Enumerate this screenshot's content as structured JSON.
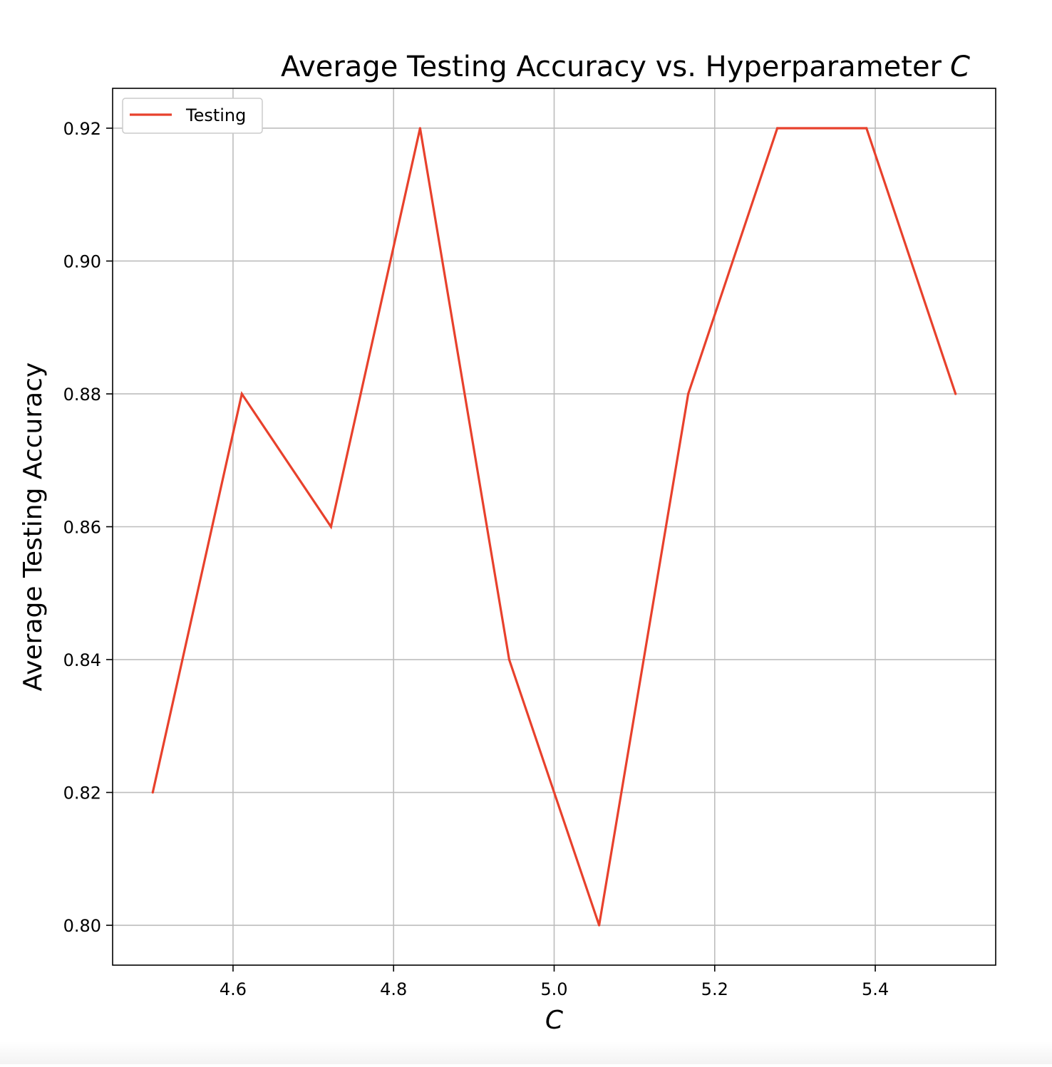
{
  "chart_data": {
    "type": "line",
    "title": "Average Testing Accuracy vs. Hyperparameter",
    "title_symbol": "C",
    "xlabel": "C",
    "ylabel": "Average Testing Accuracy",
    "xlim": [
      4.45,
      5.55
    ],
    "ylim": [
      0.794,
      0.926
    ],
    "xticks": [
      4.6,
      4.8,
      5.0,
      5.2,
      5.4
    ],
    "xtick_labels": [
      "4.6",
      "4.8",
      "5.0",
      "5.2",
      "5.4"
    ],
    "yticks": [
      0.8,
      0.82,
      0.84,
      0.86,
      0.88,
      0.9,
      0.92
    ],
    "ytick_labels": [
      "0.80",
      "0.82",
      "0.84",
      "0.86",
      "0.88",
      "0.90",
      "0.92"
    ],
    "grid": true,
    "legend_position": "upper-left",
    "series": [
      {
        "name": "Testing",
        "color": "#e8412c",
        "x": [
          4.5,
          4.611,
          4.722,
          4.833,
          4.944,
          5.056,
          5.167,
          5.278,
          5.389,
          5.5
        ],
        "y": [
          0.82,
          0.88,
          0.86,
          0.92,
          0.84,
          0.8,
          0.88,
          0.92,
          0.92,
          0.88
        ]
      }
    ]
  }
}
